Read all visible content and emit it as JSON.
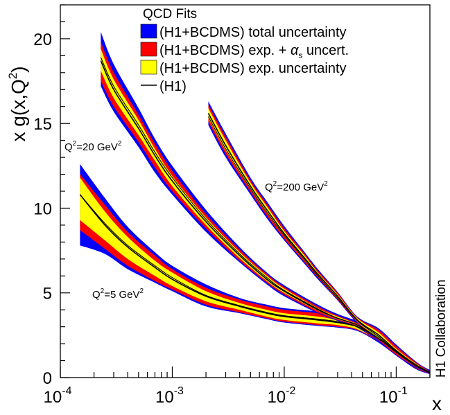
{
  "chart_data": {
    "type": "area",
    "title": "",
    "xlabel": "x",
    "ylabel": "x g(x,Q²)",
    "xscale": "log",
    "xlim": [
      0.0001,
      0.2
    ],
    "ylim": [
      0,
      22
    ],
    "x_ticks": [
      {
        "value": 0.0001,
        "base": "10",
        "exp": "-4"
      },
      {
        "value": 0.001,
        "base": "10",
        "exp": "-3"
      },
      {
        "value": 0.01,
        "base": "10",
        "exp": "-2"
      },
      {
        "value": 0.1,
        "base": "10",
        "exp": "-1"
      }
    ],
    "y_ticks": [
      0,
      5,
      10,
      15,
      20
    ],
    "side_label": "H1 Collaboration",
    "legend": {
      "title": "QCD Fits",
      "position": "top-right",
      "entries": [
        {
          "label": "(H1+BCDMS) total uncertainty",
          "color": "#0000ff",
          "kind": "box"
        },
        {
          "label": "(H1+BCDMS) exp. + αs uncert.",
          "label_main": "(H1+BCDMS) exp. + ",
          "label_alpha": "α",
          "label_sub": "s",
          "label_tail": " uncert.",
          "color": "#ff0000",
          "kind": "box"
        },
        {
          "label": "(H1+BCDMS) exp. uncertainty",
          "color": "#ffff00",
          "kind": "box"
        },
        {
          "label": "(H1)",
          "color": "#000000",
          "kind": "line"
        }
      ]
    },
    "series": [
      {
        "name": "Q²=5 GeV²",
        "label_text": "Q",
        "label_sup": "2",
        "label_rest": "=5 GeV",
        "label_sup2": "2",
        "x": [
          0.00015,
          0.00025,
          0.0004,
          0.0007,
          0.001,
          0.002,
          0.004,
          0.007,
          0.01,
          0.02,
          0.03,
          0.045,
          0.07,
          0.1,
          0.15,
          0.2
        ],
        "central": [
          10.8,
          9.0,
          7.7,
          6.5,
          5.8,
          4.8,
          4.2,
          3.8,
          3.6,
          3.4,
          3.25,
          3.0,
          2.3,
          1.5,
          0.7,
          0.3
        ],
        "h1": [
          10.8,
          9.1,
          7.8,
          6.6,
          5.9,
          4.85,
          4.25,
          3.85,
          3.65,
          3.45,
          3.3,
          3.0,
          2.3,
          1.5,
          0.7,
          0.3
        ],
        "exp_lo": [
          9.3,
          8.1,
          7.0,
          6.0,
          5.4,
          4.5,
          4.0,
          3.6,
          3.4,
          3.2,
          3.1,
          2.85,
          2.15,
          1.4,
          0.6,
          0.25
        ],
        "exp_hi": [
          11.8,
          9.8,
          8.3,
          6.9,
          6.2,
          5.1,
          4.4,
          4.0,
          3.8,
          3.6,
          3.4,
          3.15,
          2.5,
          1.65,
          0.8,
          0.35
        ],
        "alpha_lo": [
          8.7,
          7.6,
          6.6,
          5.7,
          5.2,
          4.3,
          3.85,
          3.5,
          3.3,
          3.1,
          3.0,
          2.8,
          2.1,
          1.35,
          0.55,
          0.22
        ],
        "alpha_hi": [
          12.0,
          10.2,
          8.6,
          7.2,
          6.4,
          5.3,
          4.6,
          4.2,
          4.0,
          3.8,
          3.55,
          3.25,
          2.6,
          1.7,
          0.85,
          0.4
        ],
        "total_lo": [
          7.8,
          7.3,
          6.4,
          5.6,
          5.1,
          4.2,
          3.8,
          3.45,
          3.25,
          3.05,
          2.95,
          2.75,
          2.05,
          1.3,
          0.5,
          0.2
        ],
        "total_hi": [
          12.6,
          10.6,
          8.9,
          7.4,
          6.6,
          5.5,
          4.7,
          4.3,
          4.1,
          3.9,
          3.65,
          3.35,
          2.7,
          1.8,
          0.9,
          0.45
        ]
      },
      {
        "name": "Q²=20 GeV²",
        "label_text": "Q",
        "label_sup": "2",
        "label_rest": "=20 GeV",
        "label_sup2": "2",
        "x": [
          0.00023,
          0.0003,
          0.0005,
          0.0007,
          0.001,
          0.002,
          0.004,
          0.007,
          0.01,
          0.02,
          0.03,
          0.045,
          0.07,
          0.1,
          0.15,
          0.2
        ],
        "central": [
          18.7,
          17.0,
          14.7,
          13.1,
          11.6,
          9.2,
          7.2,
          5.8,
          5.1,
          4.0,
          3.5,
          3.1,
          2.3,
          1.55,
          0.75,
          0.3
        ],
        "h1": [
          18.9,
          17.2,
          14.9,
          13.3,
          11.8,
          9.35,
          7.3,
          5.9,
          5.15,
          4.05,
          3.5,
          3.1,
          2.3,
          1.55,
          0.75,
          0.3
        ],
        "exp_lo": [
          18.1,
          16.5,
          14.3,
          12.8,
          11.3,
          9.0,
          7.05,
          5.7,
          5.0,
          3.95,
          3.45,
          3.05,
          2.2,
          1.45,
          0.7,
          0.27
        ],
        "exp_hi": [
          19.4,
          17.6,
          15.2,
          13.5,
          11.9,
          9.45,
          7.4,
          6.0,
          5.25,
          4.1,
          3.6,
          3.15,
          2.4,
          1.65,
          0.8,
          0.33
        ],
        "alpha_lo": [
          17.5,
          16.0,
          13.9,
          12.4,
          11.0,
          8.8,
          6.9,
          5.6,
          4.9,
          3.85,
          3.4,
          3.0,
          2.15,
          1.4,
          0.65,
          0.25
        ],
        "alpha_hi": [
          19.8,
          18.0,
          15.5,
          13.8,
          12.2,
          9.65,
          7.55,
          6.1,
          5.35,
          4.2,
          3.65,
          3.2,
          2.45,
          1.7,
          0.85,
          0.36
        ],
        "total_lo": [
          17.2,
          15.7,
          13.6,
          12.1,
          10.8,
          8.6,
          6.8,
          5.5,
          4.8,
          3.8,
          3.35,
          2.95,
          2.1,
          1.35,
          0.6,
          0.23
        ],
        "total_hi": [
          20.4,
          18.5,
          15.9,
          14.1,
          12.5,
          9.9,
          7.7,
          6.2,
          5.45,
          4.3,
          3.75,
          3.3,
          2.5,
          1.75,
          0.9,
          0.4
        ]
      },
      {
        "name": "Q²=200 GeV²",
        "label_text": "Q",
        "label_sup": "2",
        "label_rest": "=200 GeV",
        "label_sup2": "2",
        "x": [
          0.0021,
          0.003,
          0.005,
          0.007,
          0.01,
          0.015,
          0.02,
          0.03,
          0.045,
          0.07,
          0.1,
          0.15,
          0.2
        ],
        "central": [
          15.6,
          13.7,
          11.3,
          9.9,
          8.5,
          7.1,
          6.1,
          4.8,
          3.4,
          2.5,
          1.6,
          0.75,
          0.3
        ],
        "h1": [
          15.4,
          13.5,
          11.15,
          9.75,
          8.4,
          7.0,
          6.0,
          4.7,
          3.35,
          2.4,
          1.55,
          0.7,
          0.28
        ],
        "exp_lo": [
          15.3,
          13.4,
          11.1,
          9.7,
          8.35,
          6.95,
          6.0,
          4.7,
          3.3,
          2.3,
          1.45,
          0.68,
          0.27
        ],
        "exp_hi": [
          15.9,
          14.0,
          11.5,
          10.1,
          8.65,
          7.25,
          6.2,
          4.9,
          3.5,
          2.65,
          1.7,
          0.82,
          0.33
        ],
        "alpha_lo": [
          15.1,
          13.2,
          10.95,
          9.55,
          8.2,
          6.85,
          5.9,
          4.6,
          3.25,
          2.2,
          1.35,
          0.62,
          0.25
        ],
        "alpha_hi": [
          16.1,
          14.2,
          11.65,
          10.25,
          8.8,
          7.35,
          6.3,
          5.0,
          3.55,
          2.8,
          1.85,
          0.9,
          0.36
        ],
        "total_lo": [
          14.9,
          13.0,
          10.8,
          9.4,
          8.1,
          6.75,
          5.8,
          4.55,
          3.2,
          2.15,
          1.3,
          0.58,
          0.23
        ],
        "total_hi": [
          16.3,
          14.4,
          11.8,
          10.4,
          8.95,
          7.45,
          6.4,
          5.05,
          3.6,
          2.9,
          1.95,
          0.95,
          0.4
        ]
      }
    ]
  }
}
